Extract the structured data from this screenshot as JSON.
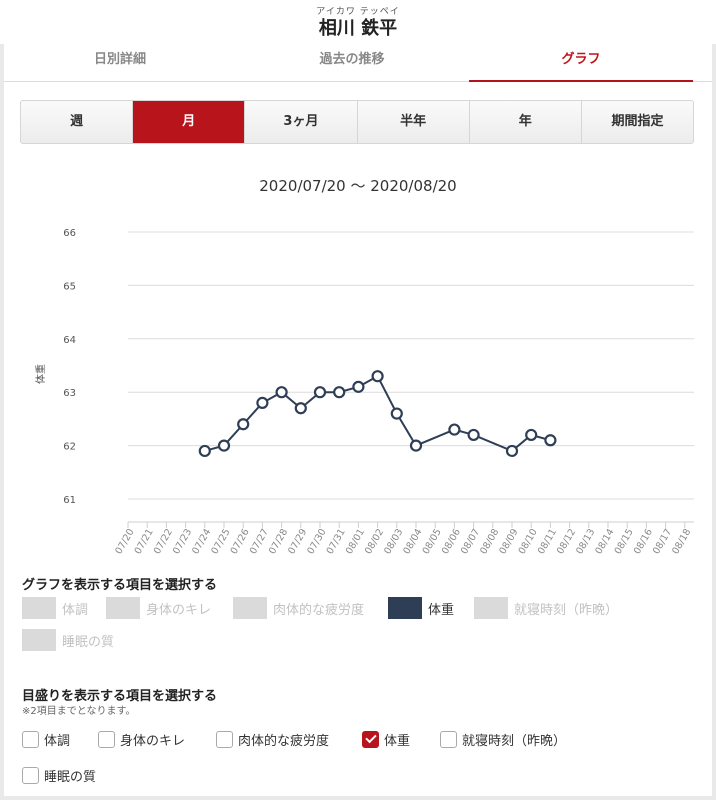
{
  "header": {
    "ruby": "アイカワ テッペイ",
    "name": "相川 鉄平"
  },
  "tabs": [
    {
      "label": "日別詳細",
      "active": false
    },
    {
      "label": "過去の推移",
      "active": false
    },
    {
      "label": "グラフ",
      "active": true
    }
  ],
  "periods": [
    {
      "label": "週",
      "active": false
    },
    {
      "label": "月",
      "active": true
    },
    {
      "label": "3ヶ月",
      "active": false
    },
    {
      "label": "半年",
      "active": false
    },
    {
      "label": "年",
      "active": false
    },
    {
      "label": "期間指定",
      "active": false
    }
  ],
  "range_label": "2020/07/20 〜 2020/08/20",
  "chart_data": {
    "type": "line",
    "ylabel": "体重",
    "ylim": [
      61,
      66
    ],
    "yticks": [
      61,
      62,
      63,
      64,
      65,
      66
    ],
    "categories": [
      "07/20",
      "07/21",
      "07/22",
      "07/23",
      "07/24",
      "07/25",
      "07/26",
      "07/27",
      "07/28",
      "07/29",
      "07/30",
      "07/31",
      "08/01",
      "08/02",
      "08/03",
      "08/04",
      "08/05",
      "08/06",
      "08/07",
      "08/08",
      "08/09",
      "08/10",
      "08/11",
      "08/12",
      "08/13",
      "08/14",
      "08/15",
      "08/16",
      "08/17",
      "08/18"
    ],
    "series": [
      {
        "color": "#2e3e55",
        "points": [
          {
            "x": "07/24",
            "y": 61.9
          },
          {
            "x": "07/25",
            "y": 62.0
          },
          {
            "x": "07/26",
            "y": 62.4
          },
          {
            "x": "07/27",
            "y": 62.8
          },
          {
            "x": "07/28",
            "y": 63.0
          },
          {
            "x": "07/29",
            "y": 62.7
          },
          {
            "x": "07/30",
            "y": 63.0
          },
          {
            "x": "07/31",
            "y": 63.0
          },
          {
            "x": "08/01",
            "y": 63.1
          },
          {
            "x": "08/02",
            "y": 63.3
          },
          {
            "x": "08/03",
            "y": 62.6
          },
          {
            "x": "08/04",
            "y": 62.0
          },
          {
            "x": "08/06",
            "y": 62.3
          },
          {
            "x": "08/07",
            "y": 62.2
          },
          {
            "x": "08/09",
            "y": 61.9
          },
          {
            "x": "08/10",
            "y": 62.2
          },
          {
            "x": "08/11",
            "y": 62.1
          }
        ]
      }
    ]
  },
  "graph_select": {
    "title": "グラフを表示する項目を選択する",
    "items": [
      {
        "label": "体調",
        "on": false
      },
      {
        "label": "身体のキレ",
        "on": false
      },
      {
        "label": "肉体的な疲労度",
        "on": false
      },
      {
        "label": "体重",
        "on": true
      },
      {
        "label": "就寝時刻（昨晩）",
        "on": false
      },
      {
        "label": "睡眠の質",
        "on": false
      }
    ]
  },
  "scale_select": {
    "title": "目盛りを表示する項目を選択する",
    "note": "※2項目までとなります。",
    "items": [
      {
        "label": "体調",
        "checked": false
      },
      {
        "label": "身体のキレ",
        "checked": false
      },
      {
        "label": "肉体的な疲労度",
        "checked": false
      },
      {
        "label": "体重",
        "checked": true
      },
      {
        "label": "就寝時刻（昨晩）",
        "checked": false
      },
      {
        "label": "睡眠の質",
        "checked": false
      }
    ]
  }
}
